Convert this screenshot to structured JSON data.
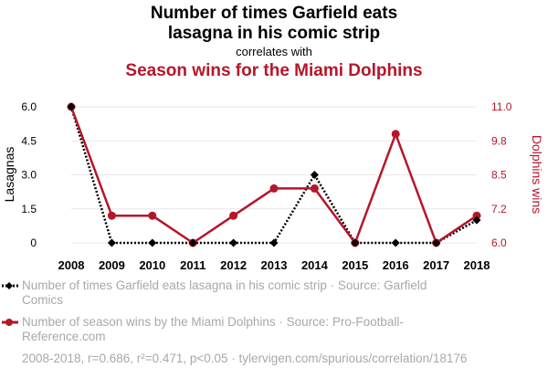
{
  "header": {
    "title_line1": "Number of times Garfield eats",
    "title_line2": "lasagna in his comic strip",
    "correlates_text": "correlates with",
    "title_line3": "Season wins for the Miami Dolphins"
  },
  "legend": {
    "series1_text": "Number of times Garfield eats lasagna in his comic strip · Source: Garfield Comics",
    "series2_text": "Number of season wins by the Miami Dolphins · Source: Pro-Football-Reference.com"
  },
  "footer": {
    "stats": "2008-2018, r=0.686, r²=0.471, p<0.05 · tylervigen.com/spurious/correlation/18176"
  },
  "colors": {
    "series1": "#000000",
    "series2": "#b5162b",
    "grid": "#e8e8e8",
    "muted_text": "#a8a8a8"
  },
  "chart_data": {
    "type": "line",
    "x": [
      2008,
      2009,
      2010,
      2011,
      2012,
      2013,
      2014,
      2015,
      2016,
      2017,
      2018
    ],
    "left_axis": {
      "label": "Lasagnas",
      "ylim": [
        0,
        6
      ],
      "ticks": [
        "0",
        "1.5",
        "3.0",
        "4.5",
        "6.0"
      ],
      "tick_values": [
        0,
        1.5,
        3,
        4.5,
        6
      ]
    },
    "right_axis": {
      "label": "Dolphins wins",
      "ylim": [
        6,
        11
      ],
      "ticks": [
        "6.0",
        "7.2",
        "8.5",
        "9.8",
        "11.0"
      ],
      "tick_values": [
        6,
        7.25,
        8.5,
        9.75,
        11
      ]
    },
    "series": [
      {
        "name": "Number of times Garfield eats lasagna in his comic strip",
        "axis": "left",
        "style": "dotted",
        "marker": "diamond",
        "values": [
          6,
          0,
          0,
          0,
          0,
          0,
          3,
          0,
          0,
          0,
          1
        ]
      },
      {
        "name": "Number of season wins by the Miami Dolphins",
        "axis": "right",
        "style": "solid",
        "marker": "circle",
        "values": [
          11,
          7,
          7,
          6,
          7,
          8,
          8,
          6,
          10,
          6,
          7
        ]
      }
    ],
    "grid": true
  }
}
